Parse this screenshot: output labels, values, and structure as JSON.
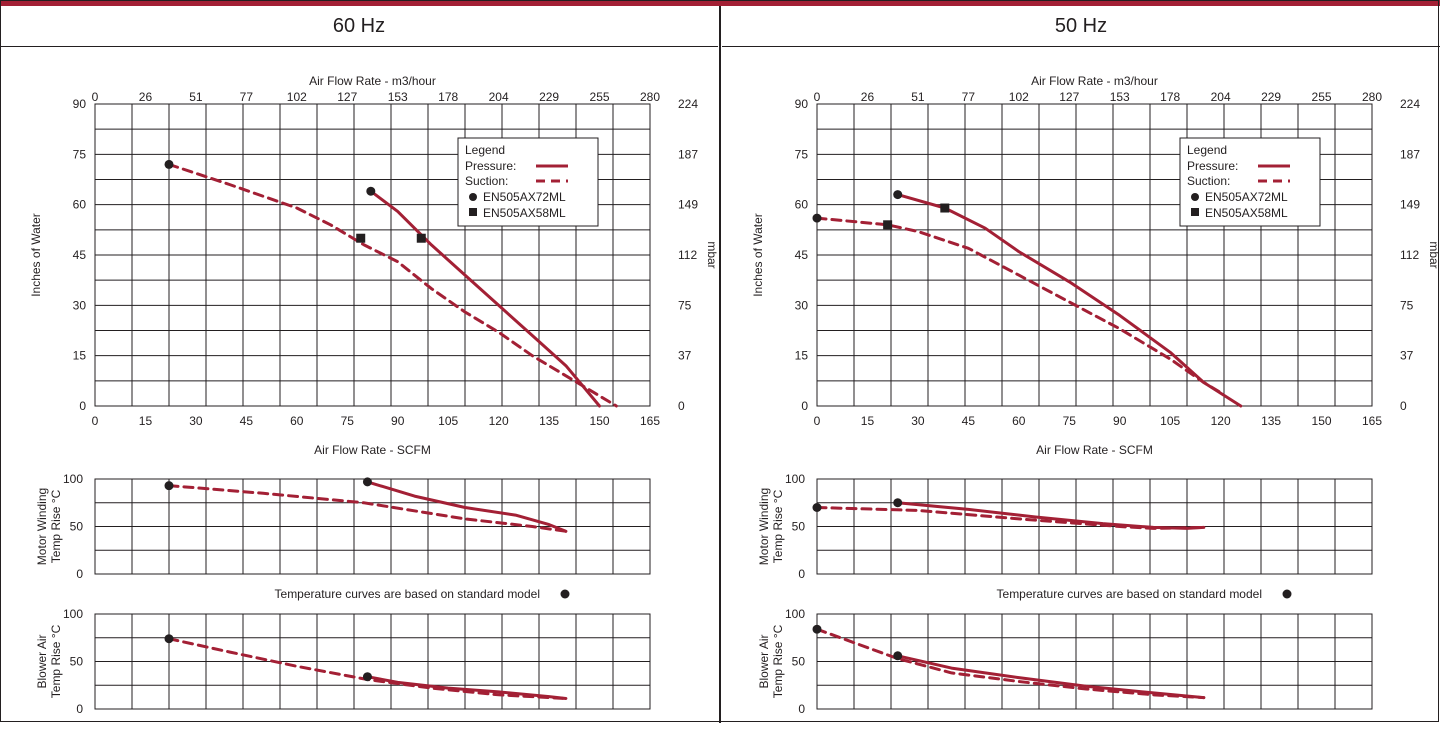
{
  "colors": {
    "curve": "#a32035",
    "grid": "#231f20",
    "marker": "#231f20",
    "header_bar": "#a32035"
  },
  "panels": [
    {
      "frequency_label": "60 Hz"
    },
    {
      "frequency_label": "50 Hz"
    }
  ],
  "chart_data": [
    {
      "type": "line",
      "panel": "60 Hz",
      "title": "",
      "xlabel": "Air Flow Rate - SCFM",
      "ylabel": "Inches of Water",
      "x2label": "Air Flow Rate - m3/hour",
      "y2label": "mbar",
      "xlim": [
        0,
        165
      ],
      "ylim": [
        0,
        90
      ],
      "xticks": [
        "0",
        "15",
        "30",
        "45",
        "60",
        "75",
        "90",
        "105",
        "120",
        "135",
        "150",
        "165"
      ],
      "yticks": [
        "0",
        "15",
        "30",
        "45",
        "60",
        "75",
        "90"
      ],
      "x2ticks": [
        "0",
        "26",
        "51",
        "77",
        "102",
        "127",
        "153",
        "178",
        "204",
        "229",
        "255",
        "280"
      ],
      "y2ticks": [
        "0",
        "37",
        "75",
        "112",
        "149",
        "187",
        "224"
      ],
      "grid": true,
      "legend": {
        "title": "Legend",
        "entries": [
          "Pressure:",
          "Suction:",
          "EN505AX72ML",
          "EN505AX58ML"
        ],
        "position": "top-right"
      },
      "series": [
        {
          "name": "Pressure:",
          "style": "solid",
          "x": [
            82,
            90,
            100,
            110,
            120,
            130,
            140,
            150
          ],
          "y": [
            64,
            58,
            48,
            39,
            30,
            21,
            12,
            0
          ]
        },
        {
          "name": "Suction:",
          "style": "dashed",
          "x": [
            22,
            40,
            60,
            70,
            80,
            90,
            100,
            110,
            120,
            130,
            140,
            150,
            155
          ],
          "y": [
            72,
            66,
            59,
            54,
            48,
            43,
            35,
            28,
            22,
            15,
            9,
            3,
            0
          ]
        }
      ],
      "markers": [
        {
          "name": "EN505AX72ML",
          "shape": "circle",
          "x": 22,
          "y": 72
        },
        {
          "name": "EN505AX72ML",
          "shape": "circle",
          "x": 82,
          "y": 64
        },
        {
          "name": "EN505AX58ML",
          "shape": "square",
          "x": 79,
          "y": 50
        },
        {
          "name": "EN505AX58ML",
          "shape": "square",
          "x": 97,
          "y": 50
        }
      ]
    },
    {
      "type": "line",
      "panel": "60 Hz",
      "title": "",
      "xlabel": "",
      "ylabel": "Motor Winding Temp Rise °C",
      "xlim": [
        0,
        165
      ],
      "ylim": [
        0,
        100
      ],
      "yticks": [
        "0",
        "50",
        "100"
      ],
      "grid": true,
      "series": [
        {
          "name": "Pressure:",
          "style": "solid",
          "x": [
            81,
            95,
            110,
            125,
            135,
            140
          ],
          "y": [
            97,
            82,
            70,
            62,
            52,
            45
          ]
        },
        {
          "name": "Suction:",
          "style": "dashed",
          "x": [
            22,
            50,
            80,
            110,
            130,
            140
          ],
          "y": [
            93,
            85,
            75,
            58,
            50,
            45
          ]
        }
      ],
      "markers": [
        {
          "name": "EN505AX72ML",
          "shape": "circle",
          "x": 22,
          "y": 93
        },
        {
          "name": "EN505AX72ML",
          "shape": "circle",
          "x": 81,
          "y": 97
        }
      ],
      "note": "Temperature curves are based on standard model"
    },
    {
      "type": "line",
      "panel": "60 Hz",
      "title": "",
      "xlabel": "",
      "ylabel": "Blower Air Temp Rise °C",
      "xlim": [
        0,
        165
      ],
      "ylim": [
        0,
        100
      ],
      "yticks": [
        "0",
        "50",
        "100"
      ],
      "grid": true,
      "series": [
        {
          "name": "Pressure:",
          "style": "solid",
          "x": [
            81,
            90,
            105,
            120,
            135,
            140
          ],
          "y": [
            34,
            28,
            22,
            18,
            13,
            11
          ]
        },
        {
          "name": "Suction:",
          "style": "dashed",
          "x": [
            22,
            40,
            60,
            81,
            100,
            120,
            140
          ],
          "y": [
            74,
            60,
            45,
            31,
            22,
            15,
            11
          ]
        }
      ],
      "markers": [
        {
          "name": "EN505AX72ML",
          "shape": "circle",
          "x": 22,
          "y": 74
        },
        {
          "name": "EN505AX72ML",
          "shape": "circle",
          "x": 81,
          "y": 34
        }
      ]
    },
    {
      "type": "line",
      "panel": "50 Hz",
      "title": "",
      "xlabel": "Air Flow Rate - SCFM",
      "ylabel": "Inches of Water",
      "x2label": "Air Flow Rate - m3/hour",
      "y2label": "mbar",
      "xlim": [
        0,
        165
      ],
      "ylim": [
        0,
        90
      ],
      "xticks": [
        "0",
        "15",
        "30",
        "45",
        "60",
        "75",
        "90",
        "105",
        "120",
        "135",
        "150",
        "165"
      ],
      "yticks": [
        "0",
        "15",
        "30",
        "45",
        "60",
        "75",
        "90"
      ],
      "x2ticks": [
        "0",
        "26",
        "51",
        "77",
        "102",
        "127",
        "153",
        "178",
        "204",
        "229",
        "255",
        "280"
      ],
      "y2ticks": [
        "0",
        "37",
        "75",
        "112",
        "149",
        "187",
        "224"
      ],
      "grid": true,
      "legend": {
        "title": "Legend",
        "entries": [
          "Pressure:",
          "Suction:",
          "EN505AX72ML",
          "EN505AX58ML"
        ],
        "position": "top-right"
      },
      "series": [
        {
          "name": "Pressure:",
          "style": "solid",
          "x": [
            24,
            38,
            50,
            60,
            75,
            90,
            105,
            115,
            126
          ],
          "y": [
            63,
            59,
            53,
            46,
            37,
            27,
            16,
            7,
            0
          ]
        },
        {
          "name": "Suction:",
          "style": "dashed",
          "x": [
            0,
            21,
            30,
            45,
            60,
            75,
            90,
            105,
            115,
            120
          ],
          "y": [
            56,
            54,
            52,
            47,
            39,
            31,
            23,
            14,
            7,
            4
          ]
        }
      ],
      "markers": [
        {
          "name": "EN505AX72ML",
          "shape": "circle",
          "x": 0,
          "y": 56
        },
        {
          "name": "EN505AX72ML",
          "shape": "circle",
          "x": 24,
          "y": 63
        },
        {
          "name": "EN505AX58ML",
          "shape": "square",
          "x": 21,
          "y": 54
        },
        {
          "name": "EN505AX58ML",
          "shape": "square",
          "x": 38,
          "y": 59
        }
      ]
    },
    {
      "type": "line",
      "panel": "50 Hz",
      "title": "",
      "xlabel": "",
      "ylabel": "Motor Winding Temp Rise °C",
      "xlim": [
        0,
        165
      ],
      "ylim": [
        0,
        100
      ],
      "yticks": [
        "0",
        "50",
        "100"
      ],
      "grid": true,
      "series": [
        {
          "name": "Pressure:",
          "style": "solid",
          "x": [
            24,
            45,
            65,
            85,
            100,
            110,
            115
          ],
          "y": [
            75,
            68,
            60,
            53,
            49,
            48,
            49
          ]
        },
        {
          "name": "Suction:",
          "style": "dashed",
          "x": [
            0,
            30,
            60,
            90,
            100,
            115
          ],
          "y": [
            70,
            67,
            58,
            50,
            48,
            49
          ]
        }
      ],
      "markers": [
        {
          "name": "EN505AX72ML",
          "shape": "circle",
          "x": 0,
          "y": 70
        },
        {
          "name": "EN505AX72ML",
          "shape": "circle",
          "x": 24,
          "y": 75
        }
      ],
      "note": "Temperature curves are based on standard model"
    },
    {
      "type": "line",
      "panel": "50 Hz",
      "title": "",
      "xlabel": "",
      "ylabel": "Blower Air Temp Rise °C",
      "xlim": [
        0,
        165
      ],
      "ylim": [
        0,
        100
      ],
      "yticks": [
        "0",
        "50",
        "100"
      ],
      "grid": true,
      "series": [
        {
          "name": "Pressure:",
          "style": "solid",
          "x": [
            24,
            40,
            60,
            80,
            100,
            115
          ],
          "y": [
            56,
            43,
            33,
            24,
            17,
            12
          ]
        },
        {
          "name": "Suction:",
          "style": "dashed",
          "x": [
            0,
            24,
            40,
            60,
            80,
            100,
            115
          ],
          "y": [
            84,
            53,
            38,
            29,
            21,
            15,
            12
          ]
        }
      ],
      "markers": [
        {
          "name": "EN505AX72ML",
          "shape": "circle",
          "x": 0,
          "y": 84
        },
        {
          "name": "EN505AX72ML",
          "shape": "circle",
          "x": 24,
          "y": 56
        }
      ]
    }
  ]
}
